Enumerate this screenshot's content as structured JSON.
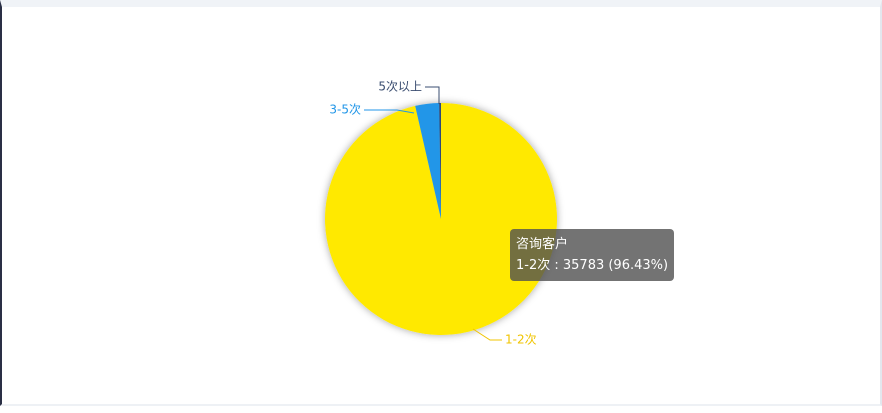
{
  "chart_data": {
    "type": "pie",
    "series_name": "咨询客户",
    "categories": [
      "1-2次",
      "3-5次",
      "5次以上"
    ],
    "values": [
      35783,
      1230,
      95
    ],
    "colors": [
      "#ffe900",
      "#2196e8",
      "#2f4a78"
    ],
    "label_colors": [
      "#f0c400",
      "#2196e8",
      "#3a4d70"
    ],
    "tooltip": {
      "title": "咨询客户",
      "text": "1-2次 : 35783 (96.43%)"
    }
  }
}
